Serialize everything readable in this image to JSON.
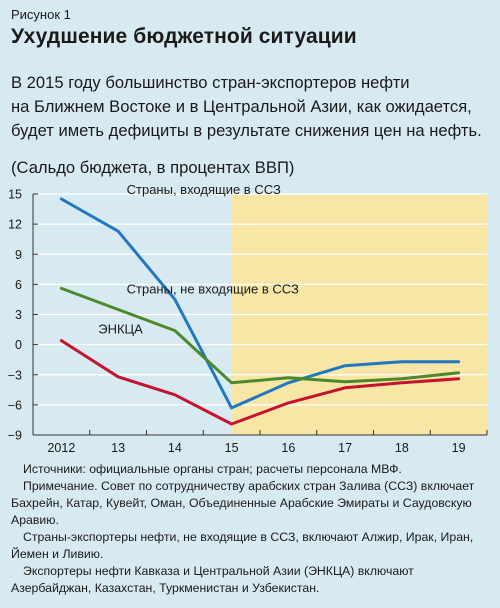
{
  "figure": {
    "label": "Рисунок 1",
    "title": "Ухудшение бюджетной ситуации",
    "subtitle_lines": [
      "В 2015 году большинство стран-экспортеров нефти",
      "на Ближнем Востоке и в Центральной Азии, как ожидается,",
      "будет иметь дефициты в результате снижения цен на нефть."
    ],
    "units": "(Сальдо бюджета, в процентах ВВП)"
  },
  "chart_data": {
    "type": "line",
    "title": "Ухудшение бюджетной ситуации",
    "xlabel": "",
    "ylabel": "",
    "x": [
      "2012",
      "13",
      "14",
      "15",
      "16",
      "17",
      "18",
      "19"
    ],
    "ylim": [
      -9,
      15
    ],
    "yticks": [
      15,
      12,
      9,
      6,
      3,
      0,
      -3,
      -6,
      -9
    ],
    "projection_start": "15",
    "grid": true,
    "series": [
      {
        "name": "Страны, входящие в ССЗ",
        "color": "#1f78c1",
        "label_at": [
          2013.15,
          15.0
        ],
        "values": [
          14.5,
          11.3,
          4.5,
          -6.3,
          -3.8,
          -2.1,
          -1.7,
          -1.7
        ]
      },
      {
        "name": "Страны, не входящие в ССЗ",
        "color": "#4a8a2a",
        "label_at": [
          2013.15,
          5.1
        ],
        "values": [
          5.6,
          3.5,
          1.4,
          -3.8,
          -3.3,
          -3.7,
          -3.4,
          -2.8
        ]
      },
      {
        "name": "ЭНКЦА",
        "color": "#c4122f",
        "label_at": [
          2012.65,
          1.1
        ],
        "values": [
          0.4,
          -3.2,
          -5.0,
          -7.9,
          -5.8,
          -4.3,
          -3.8,
          -3.4
        ]
      }
    ],
    "colors": {
      "projection_band": "#f7e6a6",
      "grid": "#ffffff",
      "axis": "#333333"
    }
  },
  "notes": [
    "Источники: официальные органы стран; расчеты персонала МВФ.",
    "Примечание. Совет по сотрудничеству арабских стран Залива (ССЗ) включает Бахрейн, Катар, Кувейт, Оман, Объединенные Арабские Эмираты и Саудовскую Аравию.",
    "Страны-экспортеры нефти, не входящие в ССЗ, включают Алжир, Ирак, Иран, Йемен и Ливию.",
    "Экспортеры нефти Кавказа и Центральной Азии (ЭНКЦА) включают Азербайджан, Казахстан, Туркменистан и Узбекистан."
  ]
}
